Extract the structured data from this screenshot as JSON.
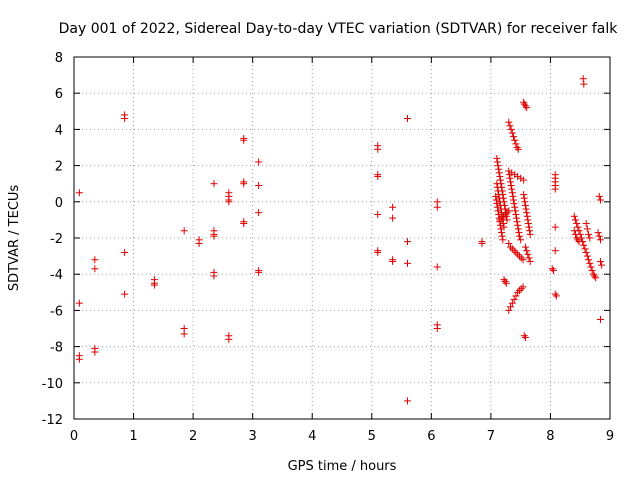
{
  "chart_data": {
    "type": "scatter",
    "title": "Day 001 of 2022, Sidereal Day-to-day VTEC variation (SDTVAR) for receiver falk",
    "xlabel": "GPS time / hours",
    "ylabel": "SDTVAR / TECUs",
    "xlim": [
      0,
      9
    ],
    "ylim": [
      -12,
      8
    ],
    "xticks": [
      "0",
      "1",
      "2",
      "3",
      "4",
      "5",
      "6",
      "7",
      "8",
      "9"
    ],
    "yticks": [
      "8",
      "6",
      "4",
      "2",
      "0",
      "-2",
      "-4",
      "-6",
      "-8",
      "-10",
      "-12"
    ],
    "grid": true,
    "marker": "+",
    "color": "#e00000",
    "series": [
      {
        "name": "SDTVAR",
        "points": [
          [
            0.09,
            0.5
          ],
          [
            0.09,
            -5.6
          ],
          [
            0.09,
            -8.5
          ],
          [
            0.09,
            -8.7
          ],
          [
            0.35,
            -3.2
          ],
          [
            0.35,
            -3.7
          ],
          [
            0.35,
            -8.1
          ],
          [
            0.35,
            -8.3
          ],
          [
            0.85,
            4.8
          ],
          [
            0.85,
            4.6
          ],
          [
            0.85,
            -2.8
          ],
          [
            0.85,
            -5.1
          ],
          [
            1.35,
            -4.3
          ],
          [
            1.35,
            -4.5
          ],
          [
            1.35,
            -4.6
          ],
          [
            1.85,
            -1.6
          ],
          [
            1.85,
            -7.0
          ],
          [
            1.85,
            -7.3
          ],
          [
            2.1,
            -2.1
          ],
          [
            2.1,
            -2.3
          ],
          [
            2.35,
            1.0
          ],
          [
            2.35,
            -1.6
          ],
          [
            2.35,
            -1.8
          ],
          [
            2.35,
            -1.9
          ],
          [
            2.35,
            -3.9
          ],
          [
            2.35,
            -4.1
          ],
          [
            2.6,
            0.5
          ],
          [
            2.6,
            0.3
          ],
          [
            2.6,
            0.1
          ],
          [
            2.6,
            0.0
          ],
          [
            2.6,
            -7.4
          ],
          [
            2.6,
            -7.6
          ],
          [
            2.85,
            3.5
          ],
          [
            2.85,
            3.4
          ],
          [
            2.85,
            1.1
          ],
          [
            2.85,
            1.0
          ],
          [
            2.85,
            -1.1
          ],
          [
            2.85,
            -1.2
          ],
          [
            3.1,
            2.2
          ],
          [
            3.1,
            0.9
          ],
          [
            3.1,
            -0.6
          ],
          [
            3.1,
            -3.8
          ],
          [
            3.1,
            -3.9
          ],
          [
            5.1,
            3.1
          ],
          [
            5.1,
            2.9
          ],
          [
            5.1,
            1.5
          ],
          [
            5.1,
            1.4
          ],
          [
            5.1,
            -0.7
          ],
          [
            5.1,
            -2.7
          ],
          [
            5.1,
            -2.8
          ],
          [
            5.35,
            -0.3
          ],
          [
            5.35,
            -0.9
          ],
          [
            5.35,
            -3.2
          ],
          [
            5.35,
            -3.3
          ],
          [
            5.6,
            4.6
          ],
          [
            5.6,
            -2.2
          ],
          [
            5.6,
            -3.4
          ],
          [
            5.6,
            -11.0
          ],
          [
            6.1,
            0.0
          ],
          [
            6.1,
            -0.3
          ],
          [
            6.1,
            -3.6
          ],
          [
            6.1,
            -6.8
          ],
          [
            6.1,
            -7.0
          ],
          [
            6.85,
            -2.2
          ],
          [
            6.85,
            -2.3
          ],
          [
            7.1,
            2.4
          ],
          [
            7.11,
            2.2
          ],
          [
            7.12,
            2.0
          ],
          [
            7.13,
            1.8
          ],
          [
            7.14,
            1.6
          ],
          [
            7.15,
            1.4
          ],
          [
            7.16,
            1.2
          ],
          [
            7.17,
            1.0
          ],
          [
            7.18,
            0.8
          ],
          [
            7.19,
            0.6
          ],
          [
            7.2,
            0.4
          ],
          [
            7.21,
            0.2
          ],
          [
            7.22,
            0.0
          ],
          [
            7.23,
            -0.2
          ],
          [
            7.24,
            -0.4
          ],
          [
            7.25,
            -0.6
          ],
          [
            7.26,
            -0.8
          ],
          [
            7.27,
            -1.0
          ],
          [
            7.1,
            1.0
          ],
          [
            7.11,
            0.8
          ],
          [
            7.12,
            0.6
          ],
          [
            7.13,
            0.4
          ],
          [
            7.14,
            0.2
          ],
          [
            7.15,
            0.0
          ],
          [
            7.16,
            -0.2
          ],
          [
            7.17,
            -0.4
          ],
          [
            7.18,
            -0.6
          ],
          [
            7.19,
            -0.8
          ],
          [
            7.2,
            -1.0
          ],
          [
            7.21,
            -1.2
          ],
          [
            7.22,
            -1.4
          ],
          [
            7.08,
            0.3
          ],
          [
            7.09,
            0.1
          ],
          [
            7.1,
            -0.1
          ],
          [
            7.11,
            -0.3
          ],
          [
            7.12,
            -0.5
          ],
          [
            7.13,
            -0.7
          ],
          [
            7.14,
            -0.9
          ],
          [
            7.15,
            -1.1
          ],
          [
            7.16,
            -1.3
          ],
          [
            7.17,
            -1.5
          ],
          [
            7.18,
            -1.7
          ],
          [
            7.19,
            -1.9
          ],
          [
            7.2,
            -2.1
          ],
          [
            7.15,
            -1.0
          ],
          [
            7.18,
            -0.9
          ],
          [
            7.21,
            -0.8
          ],
          [
            7.24,
            -0.7
          ],
          [
            7.27,
            -0.6
          ],
          [
            7.3,
            -0.5
          ],
          [
            7.22,
            -4.3
          ],
          [
            7.24,
            -4.4
          ],
          [
            7.26,
            -4.5
          ],
          [
            7.3,
            4.4
          ],
          [
            7.32,
            4.2
          ],
          [
            7.34,
            4.0
          ],
          [
            7.36,
            3.8
          ],
          [
            7.38,
            3.6
          ],
          [
            7.4,
            3.4
          ],
          [
            7.42,
            3.2
          ],
          [
            7.44,
            3.0
          ],
          [
            7.46,
            2.9
          ],
          [
            7.3,
            1.7
          ],
          [
            7.31,
            1.5
          ],
          [
            7.32,
            1.3
          ],
          [
            7.33,
            1.1
          ],
          [
            7.34,
            0.9
          ],
          [
            7.35,
            0.7
          ],
          [
            7.36,
            0.5
          ],
          [
            7.37,
            0.3
          ],
          [
            7.38,
            0.1
          ],
          [
            7.39,
            -0.1
          ],
          [
            7.4,
            -0.3
          ],
          [
            7.41,
            -0.5
          ],
          [
            7.42,
            -0.7
          ],
          [
            7.43,
            -0.9
          ],
          [
            7.44,
            -1.1
          ],
          [
            7.45,
            -1.3
          ],
          [
            7.46,
            -1.5
          ],
          [
            7.47,
            -1.7
          ],
          [
            7.48,
            -1.9
          ],
          [
            7.5,
            -2.1
          ],
          [
            7.35,
            1.6
          ],
          [
            7.4,
            1.5
          ],
          [
            7.45,
            1.4
          ],
          [
            7.5,
            1.3
          ],
          [
            7.55,
            1.2
          ],
          [
            7.3,
            -2.3
          ],
          [
            7.33,
            -2.5
          ],
          [
            7.36,
            -2.6
          ],
          [
            7.39,
            -2.7
          ],
          [
            7.42,
            -2.8
          ],
          [
            7.45,
            -2.9
          ],
          [
            7.48,
            -3.0
          ],
          [
            7.51,
            -3.1
          ],
          [
            7.54,
            -3.2
          ],
          [
            7.3,
            -6.0
          ],
          [
            7.33,
            -5.8
          ],
          [
            7.36,
            -5.6
          ],
          [
            7.39,
            -5.4
          ],
          [
            7.42,
            -5.2
          ],
          [
            7.45,
            -5.0
          ],
          [
            7.48,
            -4.9
          ],
          [
            7.51,
            -4.8
          ],
          [
            7.54,
            -4.7
          ],
          [
            7.55,
            5.5
          ],
          [
            7.56,
            5.4
          ],
          [
            7.58,
            5.3
          ],
          [
            7.6,
            5.2
          ],
          [
            7.56,
            -7.4
          ],
          [
            7.58,
            -7.5
          ],
          [
            7.55,
            0.4
          ],
          [
            7.56,
            0.2
          ],
          [
            7.57,
            0.0
          ],
          [
            7.58,
            -0.2
          ],
          [
            7.59,
            -0.4
          ],
          [
            7.6,
            -0.6
          ],
          [
            7.61,
            -0.8
          ],
          [
            7.62,
            -1.0
          ],
          [
            7.63,
            -1.2
          ],
          [
            7.64,
            -1.4
          ],
          [
            7.65,
            -1.6
          ],
          [
            7.66,
            -1.8
          ],
          [
            7.58,
            -2.5
          ],
          [
            7.6,
            -2.7
          ],
          [
            7.62,
            -2.9
          ],
          [
            7.64,
            -3.1
          ],
          [
            7.66,
            -3.3
          ],
          [
            8.03,
            -3.7
          ],
          [
            8.05,
            -3.8
          ],
          [
            8.08,
            1.5
          ],
          [
            8.08,
            1.3
          ],
          [
            8.08,
            1.1
          ],
          [
            8.08,
            0.9
          ],
          [
            8.08,
            0.7
          ],
          [
            8.08,
            -1.4
          ],
          [
            8.08,
            -2.7
          ],
          [
            8.08,
            -5.1
          ],
          [
            8.1,
            -5.2
          ],
          [
            8.4,
            -0.8
          ],
          [
            8.42,
            -1.0
          ],
          [
            8.44,
            -1.2
          ],
          [
            8.46,
            -1.4
          ],
          [
            8.48,
            -1.6
          ],
          [
            8.5,
            -1.8
          ],
          [
            8.52,
            -2.0
          ],
          [
            8.54,
            -2.2
          ],
          [
            8.56,
            -2.4
          ],
          [
            8.58,
            -2.6
          ],
          [
            8.6,
            -2.8
          ],
          [
            8.62,
            -3.0
          ],
          [
            8.64,
            -3.2
          ],
          [
            8.66,
            -3.4
          ],
          [
            8.68,
            -3.6
          ],
          [
            8.7,
            -3.8
          ],
          [
            8.72,
            -4.0
          ],
          [
            8.74,
            -4.1
          ],
          [
            8.76,
            -4.2
          ],
          [
            8.4,
            -1.6
          ],
          [
            8.42,
            -1.8
          ],
          [
            8.44,
            -2.0
          ],
          [
            8.46,
            -2.1
          ],
          [
            8.48,
            -2.2
          ],
          [
            8.55,
            6.8
          ],
          [
            8.56,
            6.5
          ],
          [
            8.6,
            -1.2
          ],
          [
            8.62,
            -1.5
          ],
          [
            8.64,
            -1.8
          ],
          [
            8.66,
            -2.0
          ],
          [
            8.82,
            0.3
          ],
          [
            8.84,
            0.1
          ],
          [
            8.8,
            -1.7
          ],
          [
            8.82,
            -1.9
          ],
          [
            8.84,
            -2.1
          ],
          [
            8.84,
            -3.3
          ],
          [
            8.86,
            -3.5
          ],
          [
            8.84,
            -6.5
          ]
        ]
      }
    ]
  }
}
